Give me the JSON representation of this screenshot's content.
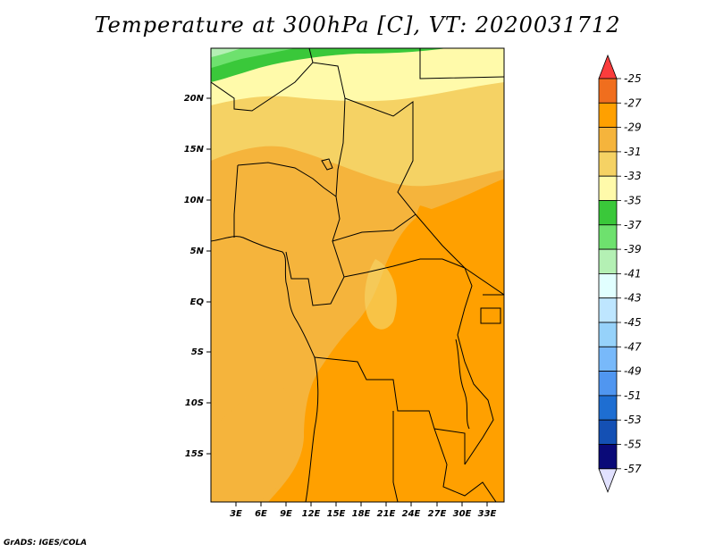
{
  "title": "Temperature at 300hPa [C], VT: 2020031712",
  "credit": "GrADS: IGES/COLA",
  "lat_labels": [
    "20N",
    "15N",
    "10N",
    "5N",
    "EQ",
    "5S",
    "10S",
    "15S"
  ],
  "lon_labels": [
    "3E",
    "6E",
    "9E",
    "12E",
    "15E",
    "18E",
    "21E",
    "24E",
    "27E",
    "30E",
    "33E"
  ],
  "colorbar": {
    "labels": [
      "-25",
      "-27",
      "-29",
      "-31",
      "-33",
      "-35",
      "-37",
      "-39",
      "-41",
      "-43",
      "-45",
      "-47",
      "-49",
      "-51",
      "-53",
      "-55",
      "-57"
    ],
    "colors": [
      "#fa3c3c",
      "#f06e1e",
      "#ffa000",
      "#f5b43c",
      "#f5d264",
      "#fffaaa",
      "#3ac83a",
      "#6ee16e",
      "#b4f0b4",
      "#e1ffff",
      "#bee6ff",
      "#96d2fa",
      "#78b9fa",
      "#5096f0",
      "#1e6ed2",
      "#1450b4",
      "#0a0a78",
      "#e1e1ff"
    ]
  },
  "field_colors": {
    "t_31": "#f5b43c",
    "t_29": "#ffa000",
    "t_33": "#f5d264",
    "t_35": "#fffaaa",
    "t_37": "#3ac83a",
    "t_39": "#6ee16e",
    "t_41": "#b4f0b4"
  }
}
